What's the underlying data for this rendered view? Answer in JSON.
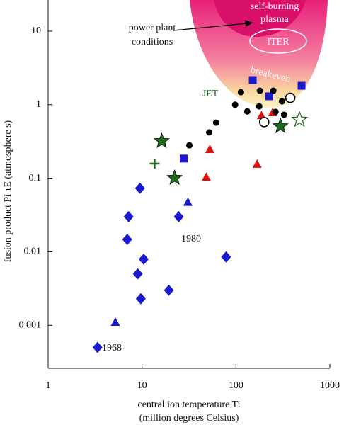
{
  "chart_data": {
    "type": "scatter",
    "xlabel": [
      "central ion temperature Ti",
      "(million degrees Celsius)"
    ],
    "ylabel": "fusion product Pi τE (atmosphere s)",
    "log_x": true,
    "log_y": true,
    "xlim": [
      1,
      1000
    ],
    "xticks": [
      1,
      10,
      100,
      1000
    ],
    "ylim": [
      0.00026,
      26.5
    ],
    "yticks": [
      0.001,
      0.01,
      0.1,
      1,
      10
    ],
    "series": [
      {
        "marker": "diamond",
        "color": "#1a1acc",
        "x": [
          3.36,
          9.5,
          7.2,
          6.95,
          10.4,
          9.0,
          9.7,
          19.3,
          24.6,
          78.5
        ],
        "values": [
          0.0005,
          0.073,
          0.03,
          0.0147,
          0.0079,
          0.005,
          0.0023,
          0.003,
          0.03,
          0.0085
        ]
      },
      {
        "marker": "triangle",
        "color": "#1a1acc",
        "x": [
          5.2,
          30.8
        ],
        "values": [
          0.0011,
          0.047
        ]
      },
      {
        "marker": "triangle",
        "color": "#e01010",
        "x": [
          52.7,
          48.3,
          168,
          187,
          246
        ],
        "values": [
          0.246,
          0.103,
          0.155,
          0.71,
          0.78
        ]
      },
      {
        "marker": "square",
        "color": "#1a1acc",
        "x": [
          27.8,
          151,
          226,
          500
        ],
        "values": [
          0.185,
          2.16,
          1.3,
          1.81
        ]
      },
      {
        "marker": "circle",
        "color": "#000000",
        "x": [
          31.9,
          51.8,
          61.5,
          98,
          113,
          132,
          180,
          177,
          250,
          264,
          309,
          325
        ],
        "values": [
          0.28,
          0.42,
          0.57,
          1.0,
          1.48,
          0.81,
          1.55,
          0.95,
          1.55,
          0.8,
          1.11,
          0.73
        ]
      },
      {
        "marker": "open-circle",
        "color": "#000000",
        "x": [
          200,
          379
        ],
        "values": [
          0.58,
          1.24
        ]
      },
      {
        "marker": "star",
        "color": "#1d6b1d",
        "x": [
          16.2,
          22.2,
          298
        ],
        "values": [
          0.32,
          0.101,
          0.51
        ]
      },
      {
        "marker": "open-star",
        "color": "#1d6b1d",
        "x": [
          475
        ],
        "values": [
          0.625
        ]
      },
      {
        "marker": "plus",
        "color": "#1d6b1d",
        "x": [
          13.6
        ],
        "values": [
          0.158
        ]
      }
    ],
    "annotations": [
      {
        "text": "1968",
        "color": "#111111"
      },
      {
        "text": "1980",
        "color": "#111111"
      },
      {
        "text": "JET",
        "color": "#1d6b1d"
      },
      {
        "text": "power plant",
        "color": "#111111"
      },
      {
        "text": "conditions",
        "color": "#111111"
      },
      {
        "text": "self-burning",
        "color": "#ffffff"
      },
      {
        "text": "plasma",
        "color": "#ffffff"
      },
      {
        "text": "ITER",
        "color": "#ffffff"
      },
      {
        "text": "breakeven",
        "color": "#ffffff"
      }
    ]
  }
}
